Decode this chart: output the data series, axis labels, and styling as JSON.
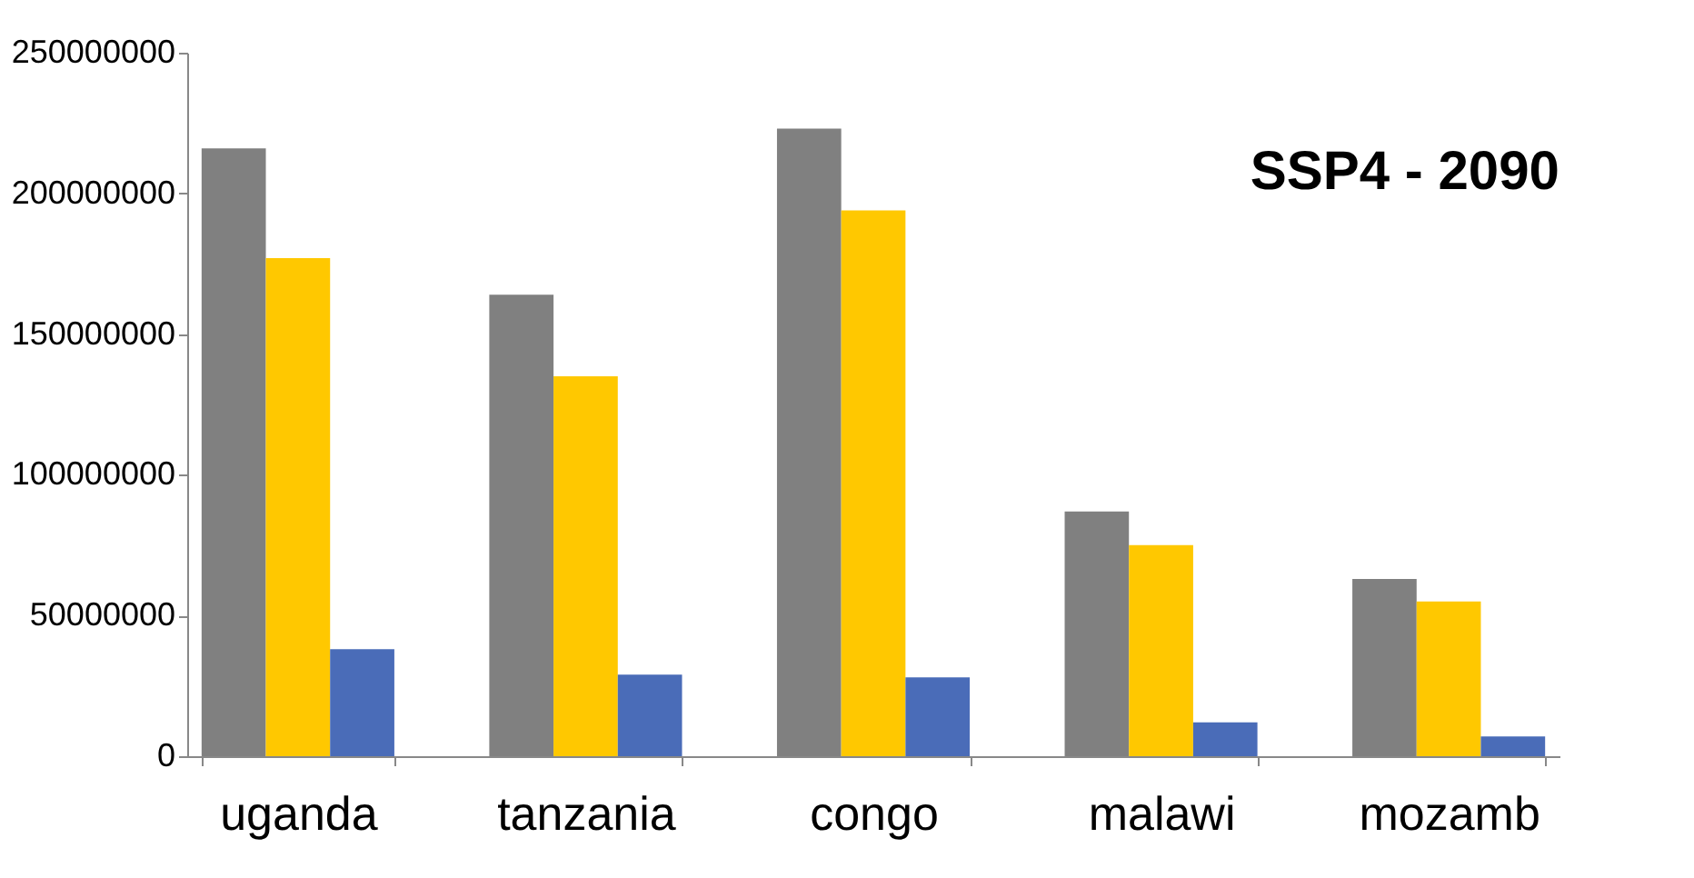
{
  "chart_data": {
    "type": "bar",
    "title": "SSP4 - 2090",
    "categories": [
      "uganda",
      "tanzania",
      "congo",
      "malawi",
      "mozamb"
    ],
    "series": [
      {
        "color": "#808080",
        "values": [
          216000000,
          164000000,
          223000000,
          87000000,
          63000000
        ]
      },
      {
        "color": "#ffc800",
        "values": [
          177000000,
          135000000,
          194000000,
          75000000,
          55000000
        ]
      },
      {
        "color": "#4a6cb8",
        "values": [
          38000000,
          29000000,
          28000000,
          12000000,
          7000000
        ]
      }
    ],
    "ylim": [
      0,
      250000000
    ],
    "yticks": [
      0,
      50000000,
      100000000,
      150000000,
      200000000,
      250000000
    ],
    "grid": false,
    "legend": false
  }
}
